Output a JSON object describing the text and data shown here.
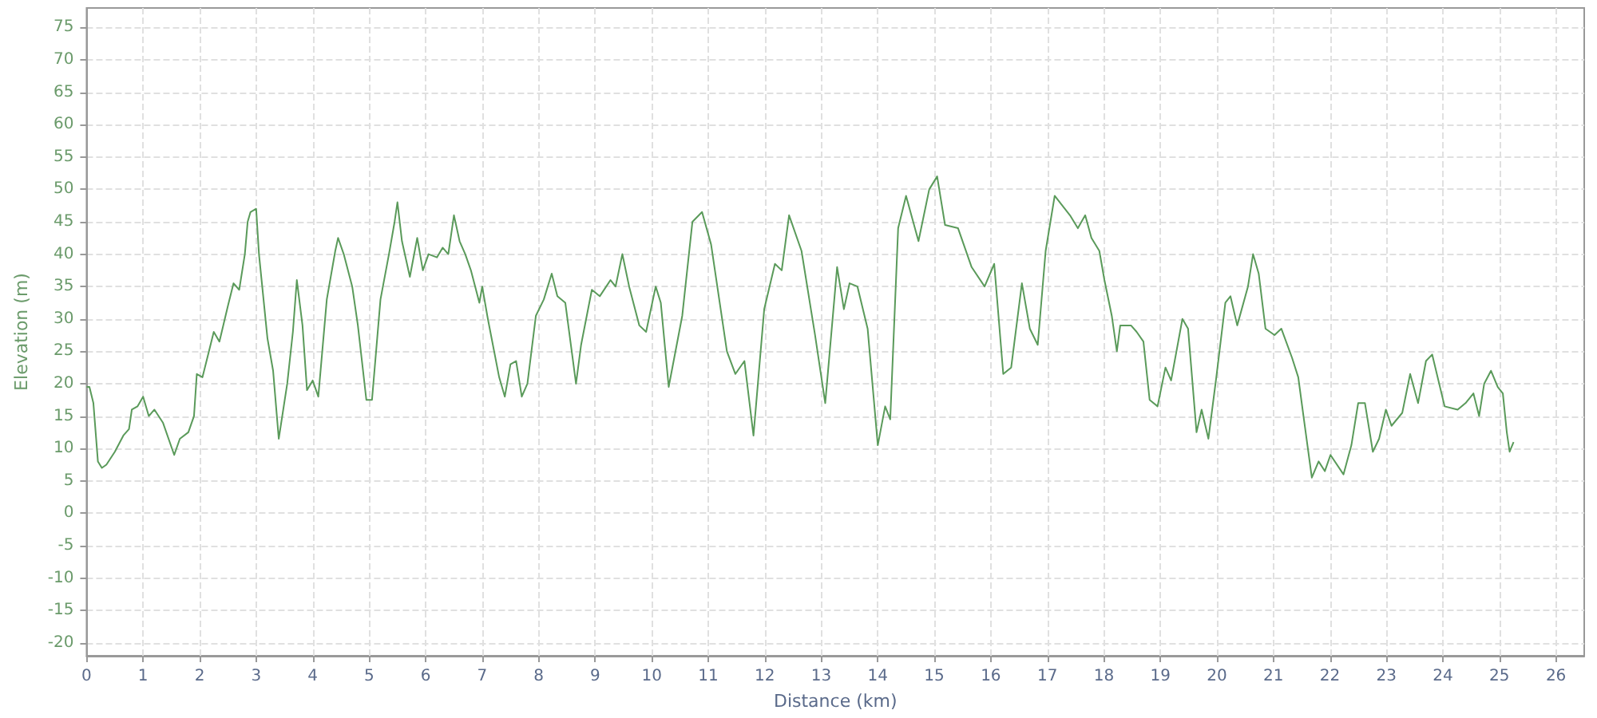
{
  "chart_data": {
    "type": "line",
    "xlabel": "Distance (km)",
    "ylabel": "Elevation (m)",
    "xlim": [
      0,
      26.5
    ],
    "xticks": [
      0,
      1,
      2,
      3,
      4,
      5,
      6,
      7,
      8,
      9,
      10,
      11,
      12,
      13,
      14,
      15,
      16,
      17,
      18,
      19,
      20,
      21,
      22,
      23,
      24,
      25,
      26
    ],
    "ylim": [
      -22,
      78
    ],
    "yticks": [
      -20,
      -15,
      -10,
      -5,
      0,
      5,
      10,
      15,
      20,
      25,
      30,
      35,
      40,
      45,
      50,
      55,
      60,
      65,
      70,
      75
    ],
    "grid": true,
    "marker": "none",
    "line_style": "solid",
    "series": [
      {
        "color": "#5a9a5a",
        "x": [
          0,
          0.05,
          0.12,
          0.2,
          0.27,
          0.35,
          0.5,
          0.65,
          0.75,
          0.8,
          0.9,
          1.0,
          1.1,
          1.2,
          1.35,
          1.55,
          1.65,
          1.8,
          1.9,
          1.95,
          2.05,
          2.15,
          2.25,
          2.35,
          2.5,
          2.6,
          2.7,
          2.8,
          2.85,
          2.9,
          3.0,
          3.05,
          3.2,
          3.3,
          3.4,
          3.55,
          3.65,
          3.72,
          3.82,
          3.9,
          4.0,
          4.1,
          4.25,
          4.4,
          4.45,
          4.55,
          4.7,
          4.8,
          4.95,
          5.05,
          5.2,
          5.35,
          5.45,
          5.5,
          5.58,
          5.72,
          5.85,
          5.95,
          6.05,
          6.2,
          6.3,
          6.4,
          6.5,
          6.6,
          6.7,
          6.8,
          6.95,
          7.0,
          7.1,
          7.3,
          7.4,
          7.5,
          7.6,
          7.7,
          7.8,
          7.95,
          8.09,
          8.23,
          8.33,
          8.47,
          8.66,
          8.75,
          8.94,
          9.08,
          9.27,
          9.36,
          9.48,
          9.6,
          9.78,
          9.9,
          10.07,
          10.16,
          10.3,
          10.54,
          10.72,
          10.89,
          11.05,
          11.33,
          11.48,
          11.64,
          11.8,
          11.99,
          12.18,
          12.3,
          12.43,
          12.65,
          12.89,
          13.07,
          13.28,
          13.4,
          13.5,
          13.64,
          13.82,
          14.0,
          14.13,
          14.22,
          14.36,
          14.5,
          14.72,
          14.91,
          15.05,
          15.19,
          15.42,
          15.66,
          15.89,
          16.06,
          16.22,
          16.36,
          16.55,
          16.69,
          16.83,
          16.97,
          17.13,
          17.4,
          17.54,
          17.67,
          17.78,
          17.92,
          18.01,
          18.14,
          18.23,
          18.29,
          18.48,
          18.58,
          18.7,
          18.81,
          18.95,
          19.09,
          19.19,
          19.39,
          19.49,
          19.64,
          19.73,
          19.85,
          19.99,
          20.15,
          20.24,
          20.36,
          20.55,
          20.64,
          20.74,
          20.86,
          21.02,
          21.14,
          21.33,
          21.44,
          21.54,
          21.68,
          21.8,
          21.91,
          22.01,
          22.24,
          22.38,
          22.5,
          22.62,
          22.76,
          22.87,
          22.99,
          23.09,
          23.28,
          23.42,
          23.56,
          23.7,
          23.81,
          24.03,
          24.26,
          24.4,
          24.54,
          24.64,
          24.73,
          24.85,
          24.97,
          25.06,
          25.13,
          25.18,
          25.25
        ],
        "values": [
          19.5,
          19.5,
          17,
          8,
          7,
          7.5,
          9.5,
          12,
          13,
          16,
          16.5,
          18,
          15,
          16,
          14,
          9,
          11.5,
          12.5,
          15,
          21.5,
          21,
          24.5,
          28,
          26.5,
          32,
          35.5,
          34.5,
          40,
          45,
          46.5,
          47,
          40,
          27,
          22,
          11.5,
          20,
          28,
          36,
          29,
          19,
          20.5,
          18,
          33,
          40.5,
          42.5,
          40,
          35,
          29,
          17.5,
          17.5,
          33,
          40,
          45,
          48,
          42,
          36.5,
          42.5,
          37.5,
          40,
          39.5,
          41,
          40,
          46,
          42,
          40,
          37.5,
          32.5,
          35,
          30,
          21,
          18,
          23,
          23.5,
          18,
          20,
          30.5,
          33,
          37,
          33.5,
          32.5,
          20,
          26,
          34.5,
          33.5,
          36,
          35,
          40,
          35,
          29,
          28,
          35,
          32.5,
          19.5,
          30.5,
          45,
          46.5,
          41.5,
          25,
          21.5,
          23.5,
          12,
          31.5,
          38.5,
          37.5,
          46,
          40.5,
          27.5,
          17,
          38,
          31.5,
          35.5,
          35,
          28.5,
          10.5,
          16.5,
          14.5,
          44,
          49,
          42,
          50,
          52,
          44.5,
          44,
          38,
          35,
          38.5,
          21.5,
          22.5,
          35.5,
          28.5,
          26,
          40.5,
          49,
          46,
          44,
          46,
          42.5,
          40.5,
          36,
          30.5,
          25,
          29,
          29,
          28,
          26.5,
          17.5,
          16.5,
          22.5,
          20.5,
          30,
          28.5,
          12.5,
          16,
          11.5,
          21,
          32.5,
          33.5,
          29,
          35,
          40,
          37,
          28.5,
          27.5,
          28.5,
          24,
          21,
          14.5,
          5.5,
          8,
          6.5,
          9,
          6,
          10.5,
          17,
          17,
          9.5,
          11.5,
          16,
          13.5,
          15.5,
          21.5,
          17,
          23.5,
          24.5,
          16.5,
          16,
          17,
          18.5,
          15,
          20,
          22,
          19.5,
          18.5,
          12.5,
          9.5,
          11
        ]
      }
    ]
  }
}
